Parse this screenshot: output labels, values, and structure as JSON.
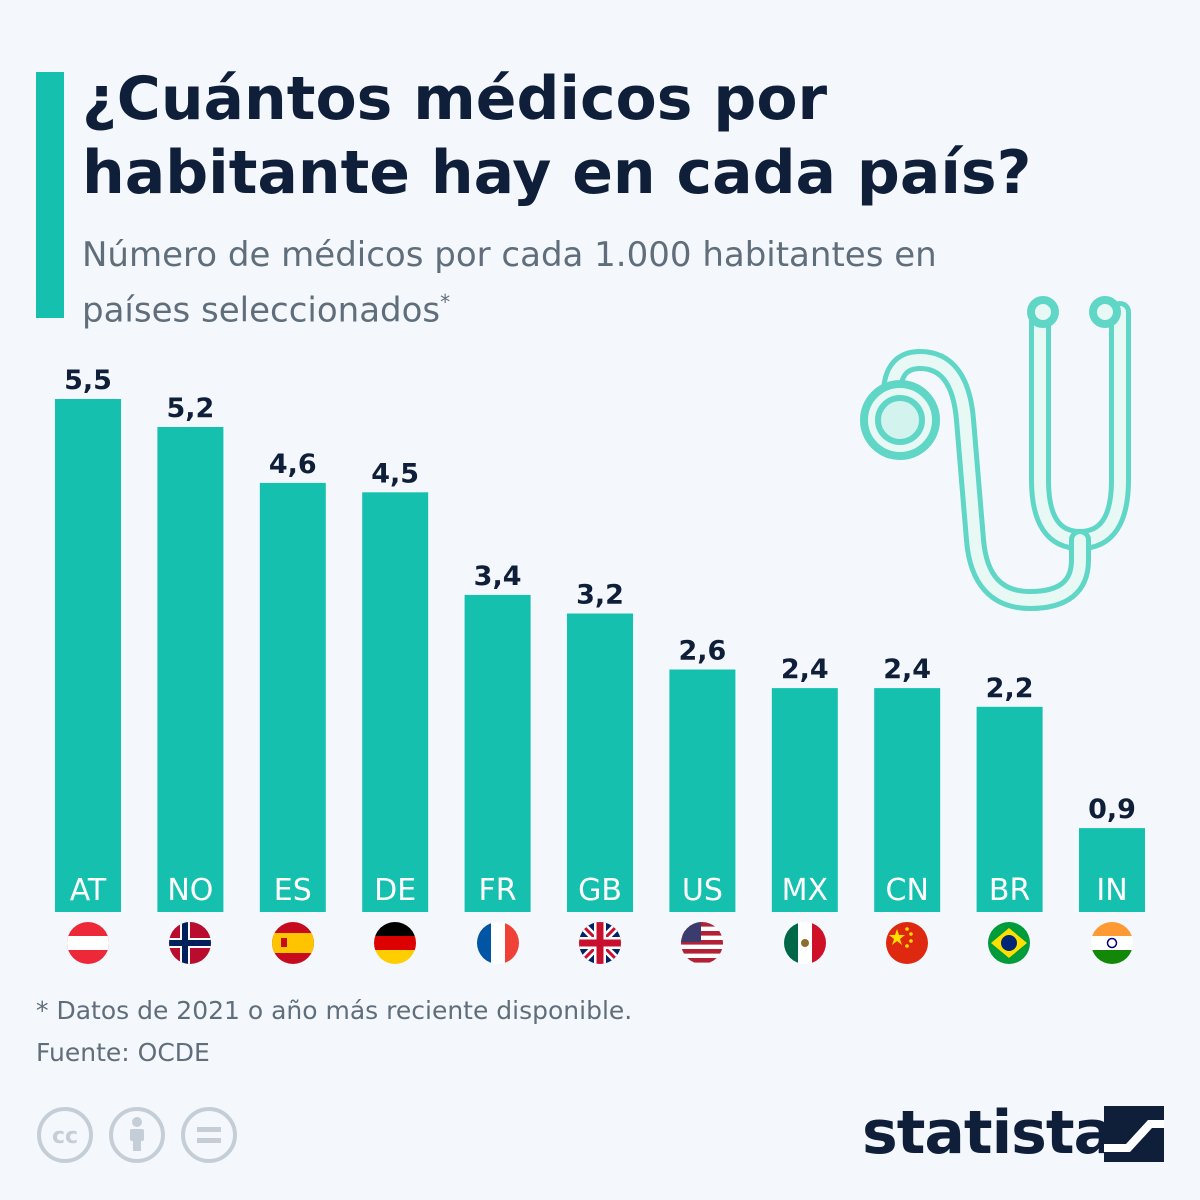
{
  "header": {
    "title": "¿Cuántos médicos por habitante hay en cada país?",
    "subtitle": "Número de médicos por cada 1.000 habitantes en países seleccionados",
    "subtitle_marker": "*"
  },
  "chart_data": {
    "type": "bar",
    "title": "¿Cuántos médicos por habitante hay en cada país?",
    "subtitle": "Número de médicos por cada 1.000 habitantes en países seleccionados",
    "categories": [
      "AT",
      "NO",
      "ES",
      "DE",
      "FR",
      "GB",
      "US",
      "MX",
      "CN",
      "BR",
      "IN"
    ],
    "values": [
      5.5,
      5.2,
      4.6,
      4.5,
      3.4,
      3.2,
      2.6,
      2.4,
      2.4,
      2.2,
      0.9
    ],
    "value_labels": [
      "5,5",
      "5,2",
      "4,6",
      "4,5",
      "3,4",
      "3,2",
      "2,6",
      "2,4",
      "2,4",
      "2,2",
      "0,9"
    ],
    "ylim": [
      0,
      5.5
    ],
    "grid": false,
    "legend": "none",
    "bar_color": "#16c0ae"
  },
  "footer": {
    "note": "* Datos de 2021 o año más reciente disponible.",
    "source": "Fuente: OCDE",
    "brand": "statista"
  },
  "icons": [
    "stethoscope-icon",
    "cc-icon",
    "attribution-icon",
    "no-derivatives-icon",
    "statista-logo-icon"
  ],
  "colors": {
    "accent": "#16c0ae",
    "title": "#0f1f3a",
    "text": "#606e7c",
    "background": "#f4f8fc"
  }
}
